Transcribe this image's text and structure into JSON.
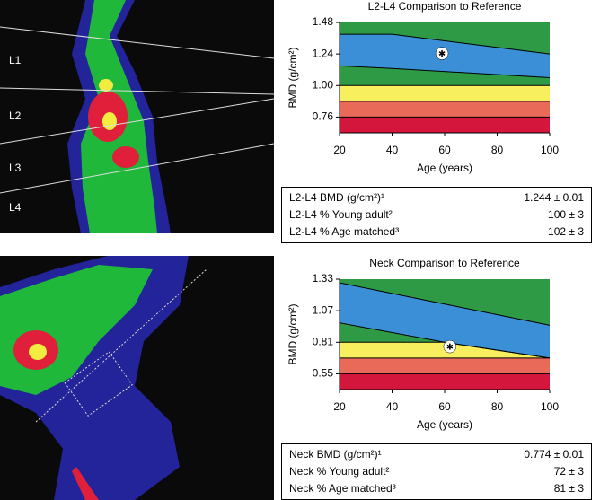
{
  "chart_data": [
    {
      "type": "area",
      "title": "L2-L4 Comparison to Reference",
      "xlabel": "Age (years)",
      "ylabel": "BMD (g/cm²)",
      "x": [
        20,
        40,
        100
      ],
      "xlim": [
        20,
        100
      ],
      "xticks": [
        20,
        40,
        60,
        80,
        100
      ],
      "ylim": [
        0.64,
        1.48
      ],
      "yticks": [
        1.48,
        1.24,
        {
          "value": 1,
          "label": "1.00"
        },
        0.76
      ],
      "boundaries": [
        [
          0.64,
          0.64,
          0.64
        ],
        [
          0.76,
          0.76,
          0.76
        ],
        [
          0.88,
          0.88,
          0.88
        ],
        [
          1,
          1,
          1
        ],
        [
          1.15,
          1.13,
          1.06
        ],
        [
          1.39,
          1.39,
          1.24
        ],
        [
          1.48,
          1.48,
          1.48
        ]
      ],
      "band_colors": [
        "#d4163c",
        "#ea6a5a",
        "#f8ef5e",
        "#2f9a46",
        "#3b8fd6",
        "#2f9a46"
      ],
      "point": {
        "x": 59,
        "y": 1.244
      }
    },
    {
      "type": "area",
      "title": "Neck Comparison to Reference",
      "xlabel": "Age (years)",
      "ylabel": "BMD (g/cm²)",
      "x": [
        20,
        60,
        100
      ],
      "xlim": [
        20,
        100
      ],
      "xticks": [
        20,
        40,
        60,
        80,
        100
      ],
      "ylim": [
        0.42,
        1.33
      ],
      "yticks": [
        1.33,
        1.07,
        0.81,
        0.55
      ],
      "boundaries": [
        [
          0.42,
          0.42,
          0.42
        ],
        [
          0.55,
          0.55,
          0.55
        ],
        [
          0.68,
          0.68,
          0.68
        ],
        [
          0.81,
          0.81,
          0.68
        ],
        [
          0.97,
          0.81,
          0.68
        ],
        [
          1.3,
          1.125,
          0.95
        ],
        [
          1.33,
          1.33,
          1.33
        ]
      ],
      "band_colors": [
        "#d4163c",
        "#ea6a5a",
        "#f8ef5e",
        "#2f9a46",
        "#3b8fd6",
        "#2f9a46"
      ],
      "point": {
        "x": 62,
        "y": 0.774
      }
    }
  ],
  "tables": [
    {
      "rows": [
        [
          "L2-L4 BMD (g/cm²)¹",
          "1.244 ± 0.01"
        ],
        [
          "L2-L4 % Young adult²",
          "100 ± 3"
        ],
        [
          "L2-L4 % Age matched³",
          "102 ± 3"
        ]
      ]
    },
    {
      "rows": [
        [
          "Neck BMD (g/cm²)¹",
          "0.774 ± 0.01"
        ],
        [
          "Neck % Young adult²",
          "72 ± 3"
        ],
        [
          "Neck % Age matched³",
          "81 ± 3"
        ]
      ]
    }
  ],
  "scan_labels": [
    "L1",
    "L2",
    "L3",
    "L4"
  ]
}
